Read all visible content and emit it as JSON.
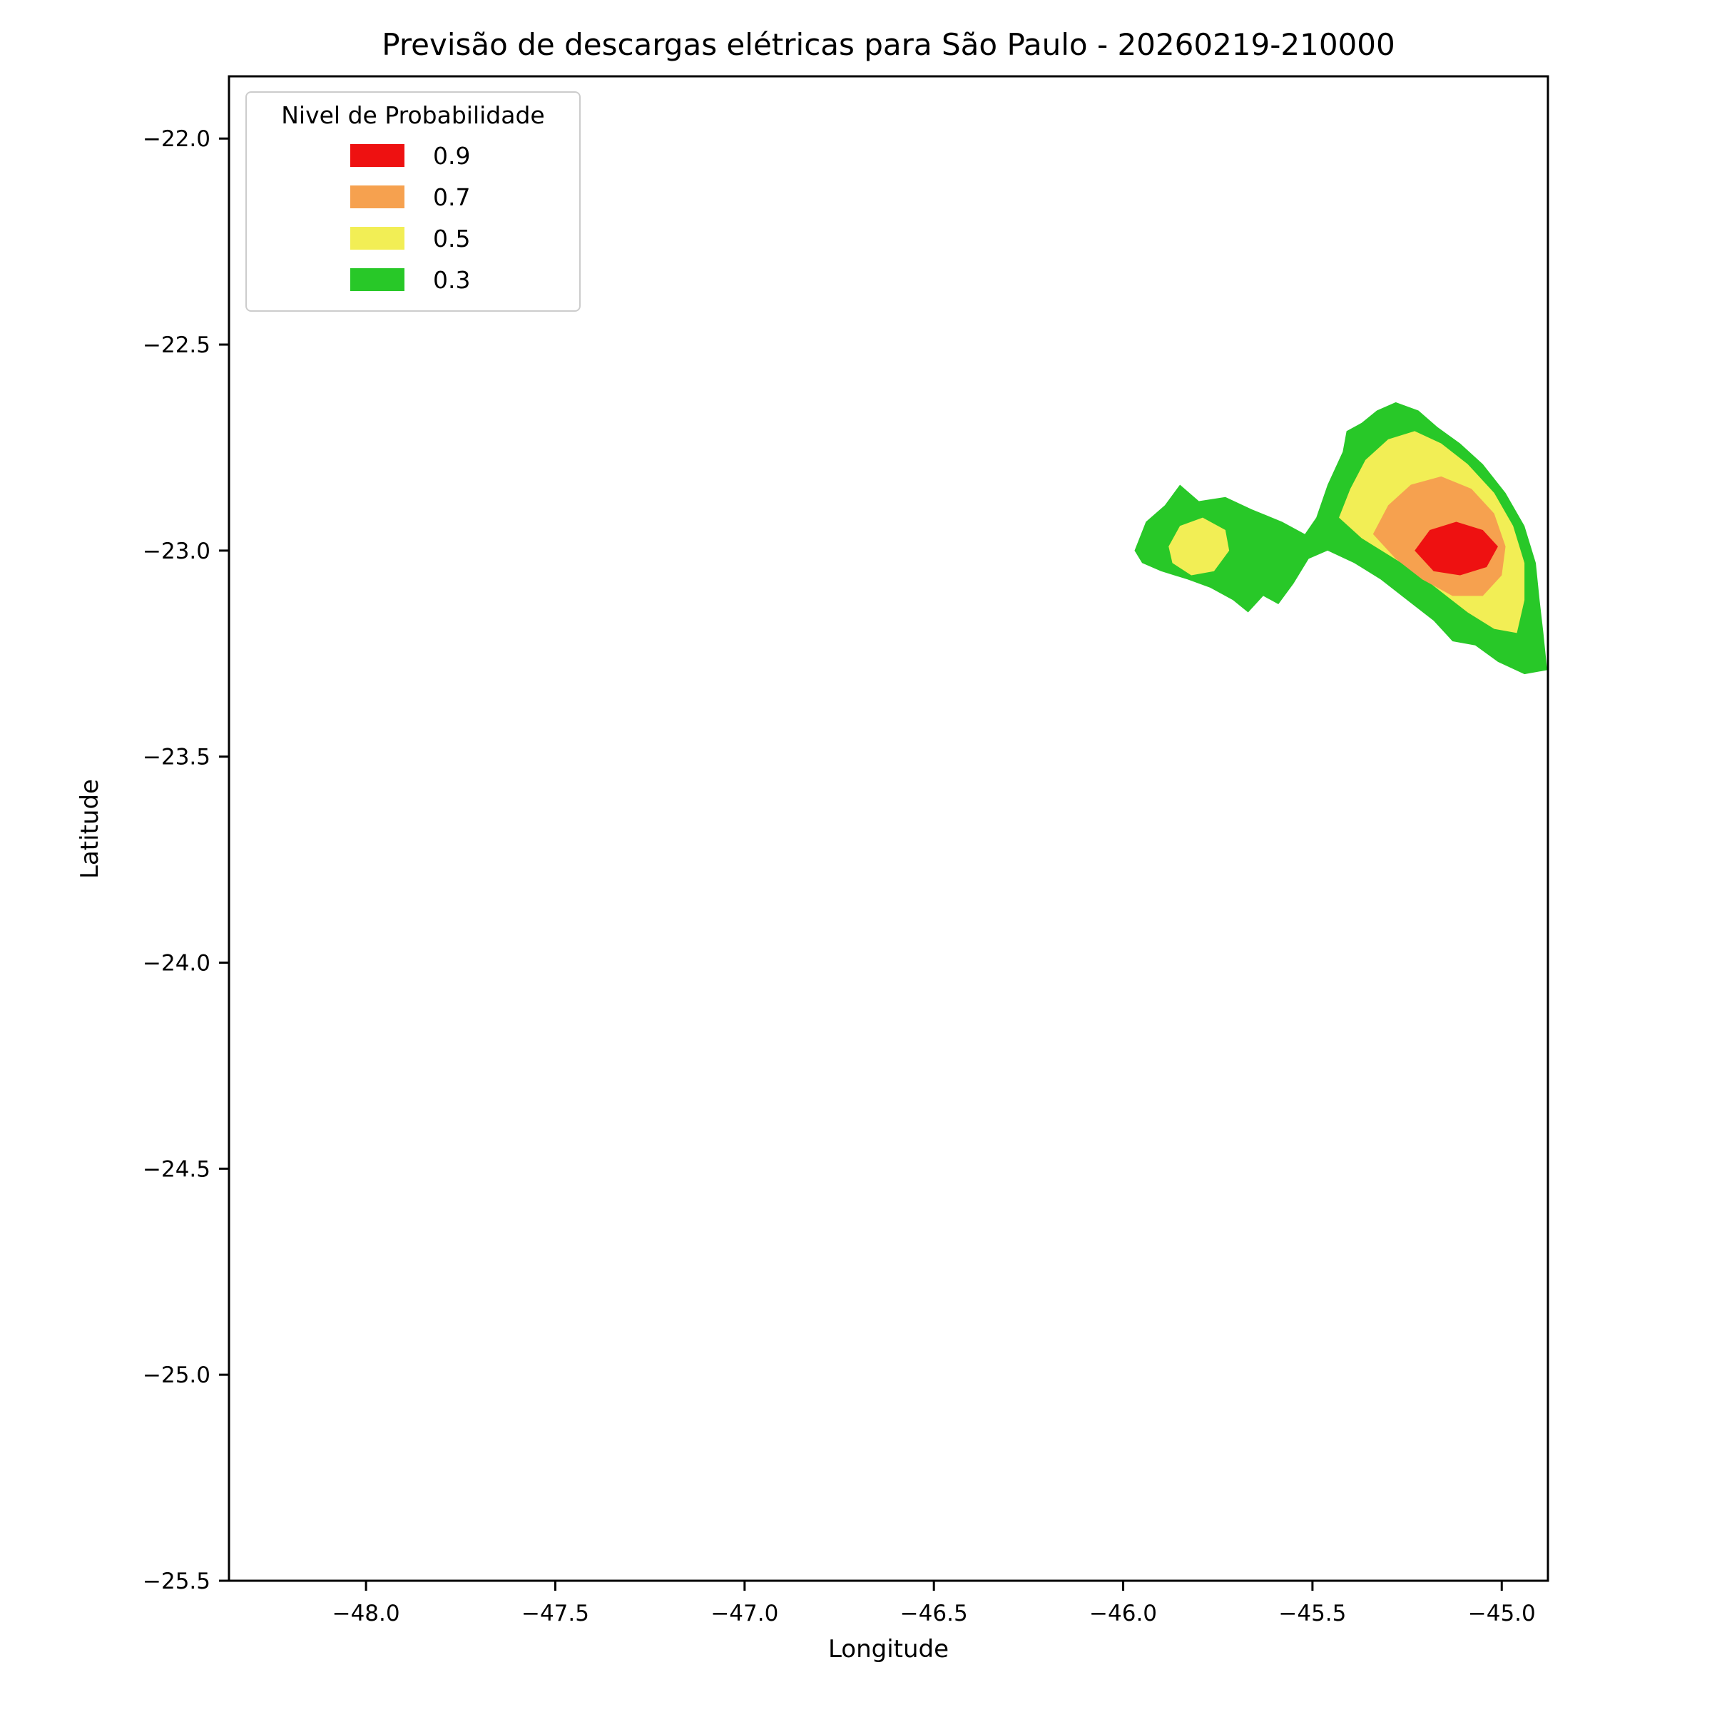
{
  "chart_data": {
    "type": "contour",
    "title": "Previsão de descargas elétricas para São Paulo - 20260219-210000",
    "xlabel": "Longitude",
    "ylabel": "Latitude",
    "xlim": [
      -48.362,
      -44.878
    ],
    "ylim": [
      -25.5,
      -21.849
    ],
    "xticks": [
      -48.0,
      -47.5,
      -47.0,
      -46.5,
      -46.0,
      -45.5,
      -45.0
    ],
    "yticks": [
      -22.0,
      -22.5,
      -23.0,
      -23.5,
      -24.0,
      -24.5,
      -25.0,
      -25.5
    ],
    "grid": false,
    "legend": {
      "title": "Nivel de Probabilidade",
      "position": "upper left",
      "entries": [
        {
          "label": "0.9",
          "color": "#ee1111"
        },
        {
          "label": "0.7",
          "color": "#f6a14f"
        },
        {
          "label": "0.5",
          "color": "#f2ee55"
        },
        {
          "label": "0.3",
          "color": "#28c828"
        }
      ]
    },
    "regions": [
      {
        "level": 0.3,
        "color": "#28c828",
        "polygon": [
          [
            -45.97,
            -23.0
          ],
          [
            -45.94,
            -22.93
          ],
          [
            -45.89,
            -22.89
          ],
          [
            -45.85,
            -22.84
          ],
          [
            -45.8,
            -22.88
          ],
          [
            -45.73,
            -22.87
          ],
          [
            -45.66,
            -22.9
          ],
          [
            -45.58,
            -22.93
          ],
          [
            -45.52,
            -22.96
          ],
          [
            -45.49,
            -22.92
          ],
          [
            -45.46,
            -22.84
          ],
          [
            -45.42,
            -22.76
          ],
          [
            -45.41,
            -22.71
          ],
          [
            -45.37,
            -22.69
          ],
          [
            -45.33,
            -22.66
          ],
          [
            -45.28,
            -22.64
          ],
          [
            -45.22,
            -22.66
          ],
          [
            -45.17,
            -22.7
          ],
          [
            -45.11,
            -22.74
          ],
          [
            -45.05,
            -22.79
          ],
          [
            -44.99,
            -22.86
          ],
          [
            -44.94,
            -22.94
          ],
          [
            -44.91,
            -23.03
          ],
          [
            -44.9,
            -23.12
          ],
          [
            -44.89,
            -23.2
          ],
          [
            -44.88,
            -23.29
          ],
          [
            -44.94,
            -23.3
          ],
          [
            -45.01,
            -23.27
          ],
          [
            -45.07,
            -23.23
          ],
          [
            -45.13,
            -23.22
          ],
          [
            -45.18,
            -23.17
          ],
          [
            -45.25,
            -23.12
          ],
          [
            -45.32,
            -23.07
          ],
          [
            -45.39,
            -23.03
          ],
          [
            -45.46,
            -23.0
          ],
          [
            -45.51,
            -23.02
          ],
          [
            -45.55,
            -23.08
          ],
          [
            -45.59,
            -23.13
          ],
          [
            -45.63,
            -23.11
          ],
          [
            -45.67,
            -23.15
          ],
          [
            -45.71,
            -23.12
          ],
          [
            -45.77,
            -23.09
          ],
          [
            -45.83,
            -23.07
          ],
          [
            -45.9,
            -23.05
          ],
          [
            -45.95,
            -23.03
          ]
        ]
      },
      {
        "level": 0.5,
        "color": "#f2ee55",
        "polygon": [
          [
            -45.88,
            -22.99
          ],
          [
            -45.85,
            -22.94
          ],
          [
            -45.79,
            -22.92
          ],
          [
            -45.73,
            -22.95
          ],
          [
            -45.72,
            -23.0
          ],
          [
            -45.76,
            -23.05
          ],
          [
            -45.82,
            -23.06
          ],
          [
            -45.87,
            -23.03
          ]
        ]
      },
      {
        "level": 0.5,
        "color": "#f2ee55",
        "polygon": [
          [
            -45.43,
            -22.92
          ],
          [
            -45.4,
            -22.85
          ],
          [
            -45.36,
            -22.78
          ],
          [
            -45.3,
            -22.73
          ],
          [
            -45.23,
            -22.71
          ],
          [
            -45.16,
            -22.74
          ],
          [
            -45.09,
            -22.79
          ],
          [
            -45.02,
            -22.86
          ],
          [
            -44.97,
            -22.94
          ],
          [
            -44.94,
            -23.03
          ],
          [
            -44.94,
            -23.12
          ],
          [
            -44.96,
            -23.2
          ],
          [
            -45.02,
            -23.19
          ],
          [
            -45.09,
            -23.15
          ],
          [
            -45.16,
            -23.1
          ],
          [
            -45.23,
            -23.05
          ],
          [
            -45.3,
            -23.01
          ],
          [
            -45.37,
            -22.97
          ]
        ]
      },
      {
        "level": 0.7,
        "color": "#f6a14f",
        "polygon": [
          [
            -45.34,
            -22.96
          ],
          [
            -45.3,
            -22.89
          ],
          [
            -45.24,
            -22.84
          ],
          [
            -45.16,
            -22.82
          ],
          [
            -45.08,
            -22.85
          ],
          [
            -45.02,
            -22.91
          ],
          [
            -44.99,
            -22.99
          ],
          [
            -45.0,
            -23.06
          ],
          [
            -45.05,
            -23.11
          ],
          [
            -45.13,
            -23.11
          ],
          [
            -45.21,
            -23.07
          ],
          [
            -45.28,
            -23.02
          ]
        ]
      },
      {
        "level": 0.9,
        "color": "#ee1111",
        "polygon": [
          [
            -45.23,
            -23.0
          ],
          [
            -45.19,
            -22.95
          ],
          [
            -45.12,
            -22.93
          ],
          [
            -45.05,
            -22.95
          ],
          [
            -45.01,
            -22.99
          ],
          [
            -45.04,
            -23.04
          ],
          [
            -45.11,
            -23.06
          ],
          [
            -45.18,
            -23.05
          ]
        ]
      }
    ]
  }
}
